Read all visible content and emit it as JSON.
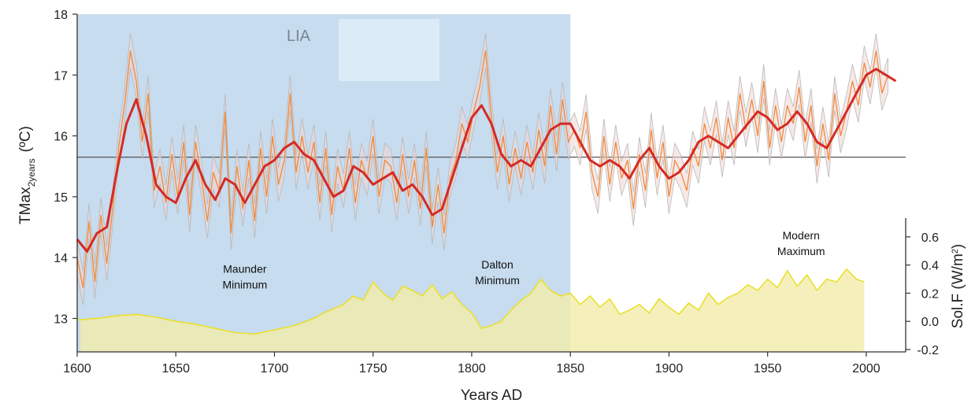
{
  "chart_data": {
    "type": "line",
    "xlabel": "Years AD",
    "ylabel_main": "TMax",
    "ylabel_sub": "2years",
    "ylabel_unit": "(ºC)",
    "y2label_main": "Sol.F (W/m",
    "y2label_sup": "2",
    "y2label_end": ")",
    "xlim": [
      1600,
      2020
    ],
    "ylim": [
      12.45,
      18
    ],
    "y2lim": [
      -0.2,
      0.7
    ],
    "x_ticks": [
      1600,
      1650,
      1700,
      1750,
      1800,
      1850,
      1900,
      1950,
      2000
    ],
    "y_ticks": [
      13,
      14,
      15,
      16,
      17,
      18
    ],
    "y2_ticks": [
      {
        "value": -0.2,
        "label": "-0.2"
      },
      {
        "value": 0.0,
        "label": "0.0"
      },
      {
        "value": 0.2,
        "label": "0.2"
      },
      {
        "value": 0.4,
        "label": "0.4"
      },
      {
        "value": 0.6,
        "label": "0.6"
      }
    ],
    "reference_line": 15.65,
    "lia_period": [
      1600,
      1850
    ],
    "lia_label": "LIA",
    "annotations": [
      {
        "lines": [
          "Maunder",
          "Minimum"
        ],
        "x": 1685,
        "y": 13.75
      },
      {
        "lines": [
          "Dalton",
          "Minimum"
        ],
        "x": 1813,
        "y": 13.82
      },
      {
        "lines": [
          "Modern",
          "Maximum"
        ],
        "x": 1967,
        "y": 14.3
      }
    ],
    "series": [
      {
        "role": "smoothed",
        "color": "#d42a25",
        "x": [
          1600,
          1605,
          1610,
          1615,
          1620,
          1625,
          1630,
          1635,
          1640,
          1645,
          1650,
          1655,
          1660,
          1665,
          1670,
          1675,
          1680,
          1685,
          1690,
          1695,
          1700,
          1705,
          1710,
          1715,
          1720,
          1725,
          1730,
          1735,
          1740,
          1745,
          1750,
          1755,
          1760,
          1765,
          1770,
          1775,
          1780,
          1785,
          1790,
          1795,
          1800,
          1805,
          1810,
          1815,
          1820,
          1825,
          1830,
          1835,
          1840,
          1845,
          1850,
          1855,
          1860,
          1865,
          1870,
          1875,
          1880,
          1885,
          1890,
          1895,
          1900,
          1905,
          1910,
          1915,
          1920,
          1925,
          1930,
          1935,
          1940,
          1945,
          1950,
          1955,
          1960,
          1965,
          1970,
          1975,
          1980,
          1985,
          1990,
          1995,
          2000,
          2005,
          2010,
          2015
        ],
        "values": [
          14.3,
          14.1,
          14.4,
          14.5,
          15.4,
          16.2,
          16.6,
          16.0,
          15.2,
          15.0,
          14.9,
          15.3,
          15.6,
          15.2,
          14.95,
          15.3,
          15.2,
          14.9,
          15.2,
          15.5,
          15.6,
          15.8,
          15.9,
          15.7,
          15.6,
          15.3,
          15.0,
          15.1,
          15.5,
          15.4,
          15.2,
          15.3,
          15.4,
          15.1,
          15.2,
          15.0,
          14.7,
          14.8,
          15.3,
          15.8,
          16.3,
          16.5,
          16.2,
          15.7,
          15.5,
          15.6,
          15.5,
          15.8,
          16.1,
          16.2,
          16.2,
          15.9,
          15.6,
          15.5,
          15.6,
          15.5,
          15.3,
          15.6,
          15.8,
          15.5,
          15.3,
          15.4,
          15.6,
          15.9,
          16.0,
          15.9,
          15.8,
          16.0,
          16.2,
          16.4,
          16.3,
          16.1,
          16.2,
          16.4,
          16.2,
          15.9,
          15.8,
          16.1,
          16.4,
          16.7,
          17.0,
          17.1,
          17.0,
          16.9
        ]
      },
      {
        "role": "annual",
        "color": "#f08a3a",
        "x": [
          1600,
          1603,
          1606,
          1609,
          1612,
          1615,
          1618,
          1621,
          1624,
          1627,
          1630,
          1633,
          1636,
          1639,
          1642,
          1645,
          1648,
          1651,
          1654,
          1657,
          1660,
          1663,
          1666,
          1669,
          1672,
          1675,
          1678,
          1681,
          1684,
          1687,
          1690,
          1693,
          1696,
          1699,
          1702,
          1705,
          1708,
          1711,
          1714,
          1717,
          1720,
          1723,
          1726,
          1729,
          1732,
          1735,
          1738,
          1741,
          1744,
          1747,
          1750,
          1753,
          1756,
          1759,
          1762,
          1765,
          1768,
          1771,
          1774,
          1777,
          1780,
          1783,
          1786,
          1789,
          1792,
          1795,
          1798,
          1801,
          1804,
          1807,
          1810,
          1813,
          1816,
          1819,
          1822,
          1825,
          1828,
          1831,
          1834,
          1837,
          1840,
          1843,
          1846,
          1849,
          1852,
          1855,
          1858,
          1861,
          1864,
          1867,
          1870,
          1873,
          1876,
          1879,
          1882,
          1885,
          1888,
          1891,
          1894,
          1897,
          1900,
          1903,
          1906,
          1909,
          1912,
          1915,
          1918,
          1921,
          1924,
          1927,
          1930,
          1933,
          1936,
          1939,
          1942,
          1945,
          1948,
          1951,
          1954,
          1957,
          1960,
          1963,
          1966,
          1969,
          1972,
          1975,
          1978,
          1981,
          1984,
          1987,
          1990,
          1993,
          1996,
          1999,
          2002,
          2005,
          2008,
          2011
        ],
        "values": [
          14.0,
          13.5,
          14.6,
          13.6,
          14.7,
          13.9,
          14.8,
          15.8,
          16.5,
          17.4,
          16.9,
          15.9,
          16.7,
          15.1,
          15.5,
          14.9,
          15.7,
          15.0,
          15.9,
          14.7,
          15.9,
          15.3,
          14.6,
          15.4,
          15.1,
          16.4,
          14.4,
          15.5,
          14.8,
          15.6,
          14.6,
          15.8,
          15.0,
          16.0,
          15.2,
          15.6,
          16.7,
          15.4,
          16.0,
          15.4,
          15.9,
          14.9,
          15.8,
          14.7,
          15.5,
          15.1,
          15.8,
          14.9,
          15.6,
          15.3,
          16.0,
          15.0,
          15.6,
          15.5,
          14.9,
          15.7,
          15.0,
          15.6,
          14.8,
          15.8,
          14.5,
          15.2,
          14.4,
          15.3,
          15.6,
          16.2,
          15.9,
          16.4,
          16.8,
          17.4,
          16.3,
          15.4,
          16.0,
          15.2,
          15.8,
          15.3,
          15.9,
          15.4,
          16.1,
          15.5,
          16.5,
          15.7,
          16.6,
          15.9,
          16.1,
          15.8,
          16.4,
          15.4,
          15.0,
          16.0,
          15.2,
          15.9,
          15.3,
          15.6,
          14.8,
          15.7,
          15.1,
          16.1,
          15.3,
          15.9,
          15.0,
          15.6,
          15.4,
          15.1,
          15.8,
          15.5,
          16.2,
          15.8,
          16.3,
          15.6,
          16.3,
          15.8,
          16.7,
          16.1,
          16.6,
          16.0,
          16.9,
          15.8,
          16.5,
          15.9,
          16.5,
          16.2,
          16.8,
          15.9,
          16.5,
          15.5,
          16.2,
          15.6,
          16.7,
          16.0,
          16.4,
          16.9,
          16.5,
          17.2,
          16.8,
          17.4,
          16.7,
          17.0
        ]
      }
    ],
    "solar_forcing": {
      "color": "#e9e02c",
      "fill": "#f2ecaa",
      "x": [
        1600,
        1610,
        1620,
        1630,
        1640,
        1650,
        1660,
        1670,
        1680,
        1690,
        1700,
        1710,
        1720,
        1725,
        1730,
        1735,
        1740,
        1745,
        1750,
        1755,
        1760,
        1765,
        1770,
        1775,
        1780,
        1785,
        1790,
        1795,
        1800,
        1805,
        1810,
        1815,
        1820,
        1825,
        1830,
        1835,
        1840,
        1845,
        1850,
        1855,
        1860,
        1865,
        1870,
        1875,
        1880,
        1885,
        1890,
        1895,
        1900,
        1905,
        1910,
        1915,
        1920,
        1925,
        1930,
        1935,
        1940,
        1945,
        1950,
        1955,
        1960,
        1965,
        1970,
        1975,
        1980,
        1985,
        1990,
        1995,
        1999
      ],
      "values": [
        0.01,
        0.02,
        0.04,
        0.05,
        0.03,
        0.0,
        -0.02,
        -0.05,
        -0.08,
        -0.09,
        -0.06,
        -0.03,
        0.02,
        0.06,
        0.09,
        0.12,
        0.18,
        0.15,
        0.28,
        0.2,
        0.15,
        0.25,
        0.22,
        0.18,
        0.26,
        0.16,
        0.21,
        0.12,
        0.06,
        -0.05,
        -0.03,
        0.0,
        0.08,
        0.15,
        0.2,
        0.3,
        0.22,
        0.18,
        0.2,
        0.12,
        0.18,
        0.1,
        0.16,
        0.05,
        0.08,
        0.12,
        0.06,
        0.16,
        0.1,
        0.05,
        0.13,
        0.08,
        0.2,
        0.12,
        0.17,
        0.2,
        0.26,
        0.22,
        0.3,
        0.24,
        0.36,
        0.25,
        0.33,
        0.22,
        0.3,
        0.28,
        0.37,
        0.3,
        0.28
      ]
    }
  }
}
